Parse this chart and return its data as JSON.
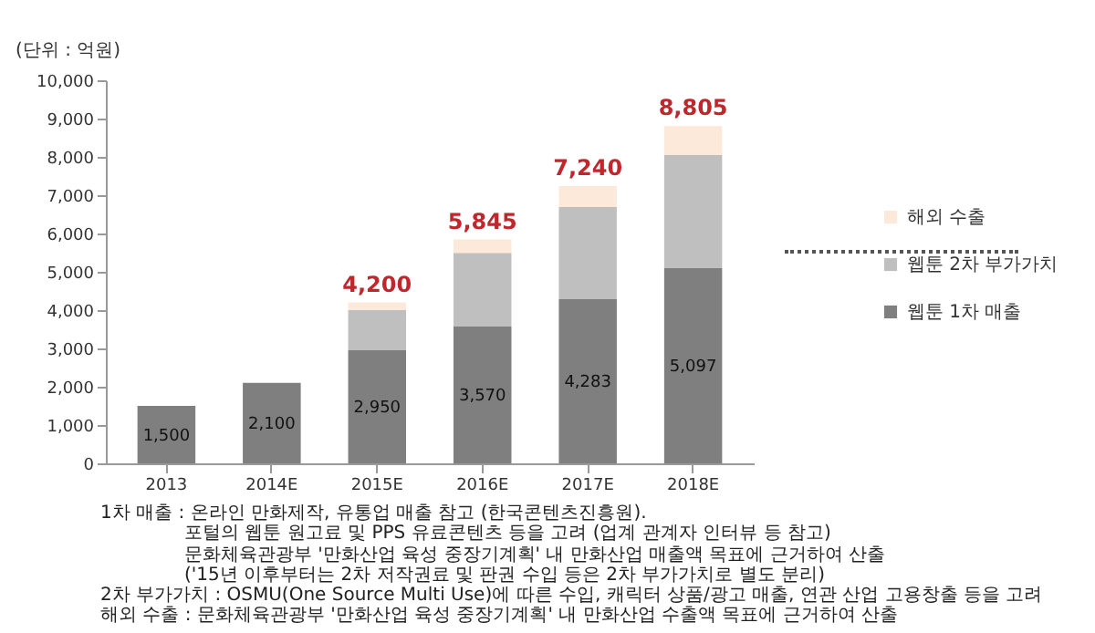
{
  "chart_data": {
    "type": "bar",
    "stacked": true,
    "ylabel": "(단위 : 억원)",
    "categories": [
      "2013",
      "2014E",
      "2015E",
      "2016E",
      "2017E",
      "2018E"
    ],
    "series": [
      {
        "name": "웹툰 1차 매출",
        "color": "#7f7f7f",
        "values": [
          1500,
          2100,
          2950,
          3570,
          4283,
          5097
        ],
        "value_labels": [
          "1,500",
          "2,100",
          "2,950",
          "3,570",
          "4,283",
          "5,097"
        ]
      },
      {
        "name": "웹툰 2차 부가가치",
        "color": "#bfbfbf",
        "values": [
          null,
          null,
          1050,
          1925,
          2407,
          2958
        ]
      },
      {
        "name": "해외 수출",
        "color": "#fde9d9",
        "values": [
          null,
          null,
          200,
          350,
          550,
          750
        ]
      }
    ],
    "totals": [
      null,
      null,
      "4,200",
      "5,845",
      "7,240",
      "8,805"
    ],
    "ylim": [
      0,
      10000
    ],
    "yticks": [
      {
        "value": 0,
        "label": "0"
      },
      {
        "value": 1000,
        "label": "1,000"
      },
      {
        "value": 2000,
        "label": "2,000"
      },
      {
        "value": 3000,
        "label": "3,000"
      },
      {
        "value": 4000,
        "label": "4,000"
      },
      {
        "value": 5000,
        "label": "5,000"
      },
      {
        "value": 6000,
        "label": "6,000"
      },
      {
        "value": 7000,
        "label": "7,000"
      },
      {
        "value": 8000,
        "label": "8,000"
      },
      {
        "value": 9000,
        "label": "9,000"
      },
      {
        "value": 10000,
        "label": "10,000"
      }
    ],
    "grid": false,
    "legend": "right",
    "annotations": [
      "1차 매출 : 온라인 만화제작, 유통업 매출 참고 (한국콘텐츠진흥원).",
      "포털의 웹툰 원고료 및 PPS 유료콘텐츠 등을 고려 (업계 관계자 인터뷰 등 참고)",
      "문화체육관광부 '만화산업 육성 중장기계획' 내 만화산업 매출액 목표에 근거하여 산출",
      "('15년 이후부터는 2차 저작권료 및 판권 수입 등은 2차 부가가치로 별도 분리)",
      "2차 부가가치 : OSMU(One Source Multi Use)에 따른 수입, 캐릭터 상품/광고 매출, 연관 산업 고용창출 등을 고려",
      "해외 수출 : 문화체육관광부 '만화산업 육성 중장기계획' 내 만화산업 수출액 목표에 근거하여 산출"
    ]
  }
}
